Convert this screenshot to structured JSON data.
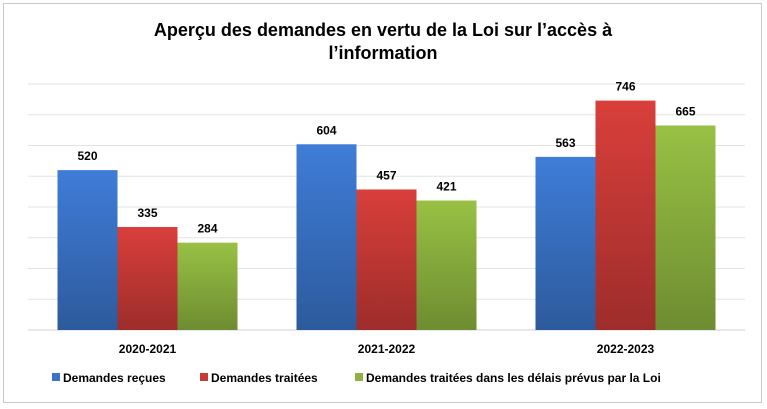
{
  "chart_data": {
    "type": "bar",
    "title_lines": [
      "Aperçu des demandes en vertu de la Loi sur l’accès à",
      "l’information"
    ],
    "categories": [
      "2020-2021",
      "2021-2022",
      "2022-2023"
    ],
    "series": [
      {
        "name": "Demandes reçues",
        "values": [
          520,
          604,
          563
        ],
        "color": "#3a74c8"
      },
      {
        "name": "Demandes traitées",
        "values": [
          335,
          457,
          746
        ],
        "color": "#c93a37"
      },
      {
        "name": "Demandes traitées dans les délais prévus par la Loi",
        "values": [
          284,
          421,
          665
        ],
        "color": "#8db33f"
      }
    ],
    "ylim": [
      0,
      800
    ],
    "grid": true,
    "legend_position": "bottom"
  }
}
